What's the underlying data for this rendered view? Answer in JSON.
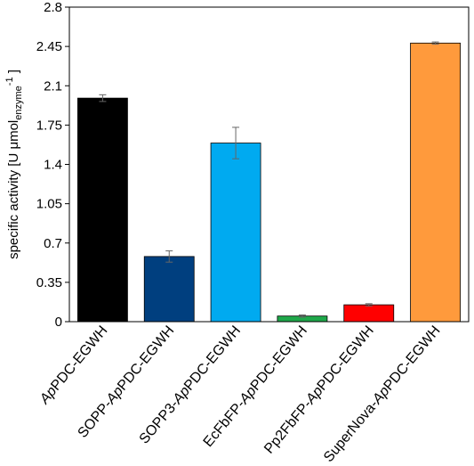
{
  "chart_data": {
    "type": "bar",
    "categories": [
      [
        {
          "t": "Ap",
          "i": true
        },
        {
          "t": "PDC-EGWH",
          "i": false
        }
      ],
      [
        {
          "t": "SOPP-",
          "i": false
        },
        {
          "t": "Ap",
          "i": true
        },
        {
          "t": "PDC-EGWH",
          "i": false
        }
      ],
      [
        {
          "t": "SOPP3-",
          "i": false
        },
        {
          "t": "Ap",
          "i": true
        },
        {
          "t": "PDC-EGWH",
          "i": false
        }
      ],
      [
        {
          "t": "EcFbFP-",
          "i": false
        },
        {
          "t": "Ap",
          "i": true
        },
        {
          "t": "PDC-EGWH",
          "i": false
        }
      ],
      [
        {
          "t": "Pp2FbFP-",
          "i": false
        },
        {
          "t": "Ap",
          "i": true
        },
        {
          "t": "PDC-EGWH",
          "i": false
        }
      ],
      [
        {
          "t": "SuperNova-",
          "i": false
        },
        {
          "t": "Ap",
          "i": true
        },
        {
          "t": "PDC-EGWH",
          "i": false
        }
      ]
    ],
    "values": [
      1.99,
      0.58,
      1.59,
      0.05,
      0.15,
      2.48
    ],
    "errors": [
      0.03,
      0.05,
      0.14,
      0.01,
      0.01,
      0.01
    ],
    "colors": [
      "#000000",
      "#003f7f",
      "#00aaf0",
      "#1fa84a",
      "#ff0000",
      "#ff9a3c"
    ],
    "ylabel": {
      "main": "specific activity  [U μmol",
      "sub": "enzyme",
      "sup": "-1",
      "end": "]"
    },
    "yticks": [
      "0",
      "0.35",
      "0.7",
      "1.05",
      "1.4",
      "1.75",
      "2.1",
      "2.45",
      "2.8"
    ],
    "ylim": [
      0,
      2.8
    ],
    "grid": false,
    "legend": false
  }
}
